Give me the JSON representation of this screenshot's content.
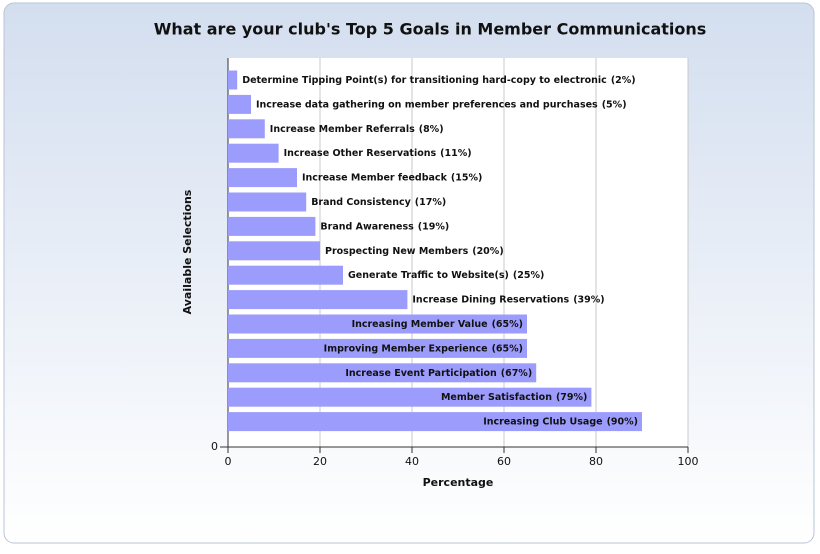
{
  "chart_data": {
    "type": "bar",
    "orientation": "horizontal",
    "title": "What are your club's Top 5 Goals in Member Communications",
    "x_label": "Percentage",
    "y_label": "Available Selections",
    "categories": [
      "Determine Tipping Point(s) for transitioning hard-copy to electronic",
      "Increase data gathering on member preferences and purchases",
      "Increase Member Referrals",
      "Increase Other Reservations",
      "Increase Member feedback",
      "Brand Consistency",
      "Brand Awareness",
      "Prospecting New Members",
      "Generate Traffic to Website(s)",
      "Increase Dining Reservations",
      "Increasing Member Value",
      "Improving Member Experience",
      "Increase Event Participation",
      "Member Satisfaction",
      "Increasing Club Usage"
    ],
    "values": [
      2,
      5,
      8,
      11,
      15,
      17,
      19,
      20,
      25,
      39,
      65,
      65,
      67,
      79,
      90
    ],
    "value_labels": [
      "(2%)",
      "(5%)",
      "(8%)",
      "(11%)",
      "(15%)",
      "(17%)",
      "(19%)",
      "(20%)",
      "(25%)",
      "(39%)",
      "(65%)",
      "(65%)",
      "(67%)",
      "(79%)",
      "(90%)"
    ],
    "color": "#9c9cfc",
    "xlim": [
      0,
      100
    ],
    "xticks": [
      0,
      20,
      40,
      60,
      80,
      100
    ],
    "y_origin_label": "0",
    "grid": true
  }
}
